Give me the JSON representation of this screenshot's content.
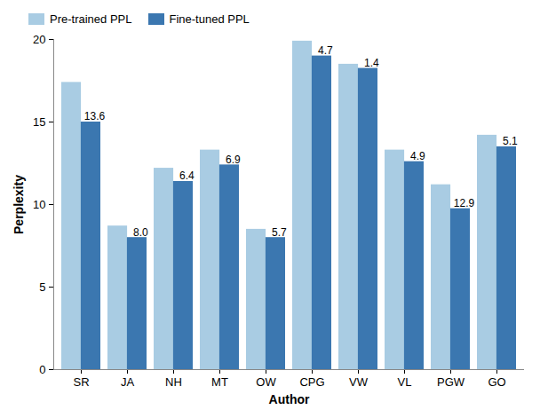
{
  "chart_data": {
    "type": "bar",
    "x_label": "Author",
    "y_label": "Perplexity",
    "categories": [
      "SR",
      "JA",
      "NH",
      "MT",
      "OW",
      "CPG",
      "VW",
      "VL",
      "PGW",
      "GO"
    ],
    "series": [
      {
        "name": "Pre-trained PPL",
        "color": "#a9cce3",
        "values": [
          17.4,
          8.7,
          12.2,
          13.3,
          8.5,
          19.9,
          18.5,
          13.3,
          11.2,
          14.2
        ]
      },
      {
        "name": "Fine-tuned PPL",
        "color": "#3b77b0",
        "values": [
          15.0,
          8.0,
          11.4,
          12.4,
          8.0,
          19.0,
          18.25,
          12.6,
          9.75,
          13.5
        ],
        "annotations": [
          "13.6",
          "8.0",
          "6.4",
          "6.9",
          "5.7",
          "4.7",
          "1.4",
          "4.9",
          "12.9",
          "5.1"
        ]
      }
    ],
    "ylim": [
      0,
      20
    ],
    "yticks": [
      0,
      5,
      10,
      15,
      20
    ],
    "grid": false,
    "legend": "top-left"
  }
}
